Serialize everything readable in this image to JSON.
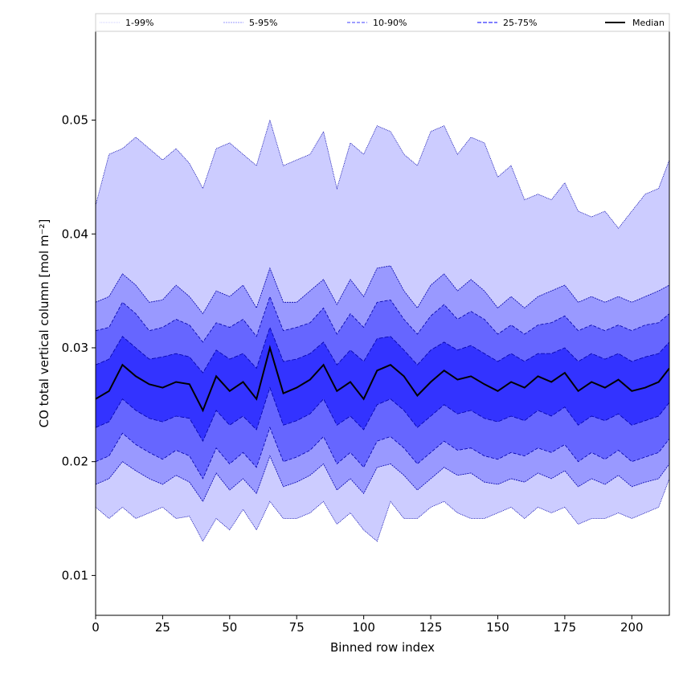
{
  "chart_data": {
    "type": "area",
    "xlabel": "Binned row index",
    "ylabel": "CO total vertical column [mol m⁻²]",
    "xlim": [
      0,
      214
    ],
    "ylim": [
      0.0065,
      0.0578
    ],
    "xticks": [
      0,
      25,
      50,
      75,
      100,
      125,
      150,
      175,
      200
    ],
    "xtick_labels": [
      "0",
      "25",
      "50",
      "75",
      "100",
      "125",
      "150",
      "175",
      "200"
    ],
    "yticks": [
      0.01,
      0.02,
      0.03,
      0.04,
      0.05
    ],
    "ytick_labels": [
      "0.01",
      "0.02",
      "0.03",
      "0.04",
      "0.05"
    ],
    "grid": false,
    "legend_position": "top (above plot, single row)",
    "colors": {
      "band_1_99": "#ccccff",
      "band_5_95": "#9999ff",
      "band_10_90": "#6666ff",
      "band_25_75": "#3333ff",
      "percentile_line": "#0000aa",
      "median_line": "#000000"
    },
    "legend": [
      {
        "label": "1-99%",
        "style": "dotted-thin"
      },
      {
        "label": "5-95%",
        "style": "dotted"
      },
      {
        "label": "10-90%",
        "style": "dashed"
      },
      {
        "label": "25-75%",
        "style": "dashed"
      },
      {
        "label": "Median",
        "style": "solid"
      }
    ],
    "x": [
      0,
      5,
      10,
      15,
      20,
      25,
      30,
      35,
      40,
      45,
      50,
      55,
      60,
      65,
      70,
      75,
      80,
      85,
      90,
      95,
      100,
      105,
      110,
      115,
      120,
      125,
      130,
      135,
      140,
      145,
      150,
      155,
      160,
      165,
      170,
      175,
      180,
      185,
      190,
      195,
      200,
      205,
      210,
      214
    ],
    "series": [
      {
        "name": "Median",
        "values": [
          0.0255,
          0.0262,
          0.0285,
          0.0275,
          0.0268,
          0.0265,
          0.027,
          0.0268,
          0.0245,
          0.0275,
          0.0262,
          0.027,
          0.0255,
          0.03,
          0.026,
          0.0265,
          0.0272,
          0.0285,
          0.0262,
          0.027,
          0.0255,
          0.028,
          0.0285,
          0.0275,
          0.0258,
          0.027,
          0.028,
          0.0272,
          0.0275,
          0.0268,
          0.0262,
          0.027,
          0.0265,
          0.0275,
          0.027,
          0.0278,
          0.0262,
          0.027,
          0.0265,
          0.0272,
          0.0262,
          0.0265,
          0.027,
          0.0282
        ]
      },
      {
        "name": "99%",
        "values": [
          0.0425,
          0.047,
          0.0475,
          0.0485,
          0.0475,
          0.0465,
          0.0475,
          0.0462,
          0.044,
          0.0475,
          0.048,
          0.047,
          0.046,
          0.05,
          0.046,
          0.0465,
          0.047,
          0.049,
          0.044,
          0.048,
          0.047,
          0.0495,
          0.049,
          0.047,
          0.046,
          0.049,
          0.0495,
          0.047,
          0.0485,
          0.048,
          0.045,
          0.046,
          0.043,
          0.0435,
          0.043,
          0.0445,
          0.042,
          0.0415,
          0.042,
          0.0405,
          0.042,
          0.0435,
          0.044,
          0.0465
        ]
      },
      {
        "name": "95%",
        "values": [
          0.034,
          0.0345,
          0.0365,
          0.0355,
          0.034,
          0.0342,
          0.0355,
          0.0345,
          0.033,
          0.035,
          0.0345,
          0.0355,
          0.0335,
          0.037,
          0.034,
          0.034,
          0.035,
          0.036,
          0.0338,
          0.036,
          0.0345,
          0.037,
          0.0372,
          0.035,
          0.0335,
          0.0355,
          0.0365,
          0.035,
          0.036,
          0.035,
          0.0335,
          0.0345,
          0.0335,
          0.0345,
          0.035,
          0.0355,
          0.034,
          0.0345,
          0.034,
          0.0345,
          0.034,
          0.0345,
          0.035,
          0.0355
        ]
      },
      {
        "name": "90%",
        "values": [
          0.0315,
          0.0318,
          0.034,
          0.033,
          0.0315,
          0.0318,
          0.0325,
          0.032,
          0.0305,
          0.0322,
          0.0318,
          0.0325,
          0.031,
          0.0345,
          0.0315,
          0.0318,
          0.0322,
          0.0335,
          0.0312,
          0.033,
          0.0318,
          0.034,
          0.0342,
          0.0325,
          0.0312,
          0.0328,
          0.0338,
          0.0325,
          0.0332,
          0.0325,
          0.0312,
          0.032,
          0.0312,
          0.032,
          0.0322,
          0.0328,
          0.0315,
          0.032,
          0.0315,
          0.032,
          0.0315,
          0.032,
          0.0322,
          0.033
        ]
      },
      {
        "name": "75%",
        "values": [
          0.0285,
          0.029,
          0.031,
          0.03,
          0.029,
          0.0292,
          0.0295,
          0.0292,
          0.0278,
          0.0298,
          0.029,
          0.0295,
          0.0282,
          0.0318,
          0.0288,
          0.029,
          0.0295,
          0.0305,
          0.0285,
          0.0298,
          0.0288,
          0.0308,
          0.031,
          0.0298,
          0.0285,
          0.0298,
          0.0305,
          0.0298,
          0.0302,
          0.0295,
          0.0288,
          0.0295,
          0.0288,
          0.0295,
          0.0295,
          0.03,
          0.0288,
          0.0295,
          0.029,
          0.0295,
          0.0288,
          0.0292,
          0.0295,
          0.0305
        ]
      },
      {
        "name": "25%",
        "values": [
          0.023,
          0.0235,
          0.0255,
          0.0245,
          0.0238,
          0.0235,
          0.024,
          0.0238,
          0.0218,
          0.0245,
          0.0232,
          0.024,
          0.0228,
          0.0265,
          0.0232,
          0.0236,
          0.0242,
          0.0255,
          0.0232,
          0.024,
          0.0228,
          0.025,
          0.0255,
          0.0245,
          0.023,
          0.024,
          0.025,
          0.0242,
          0.0245,
          0.0238,
          0.0235,
          0.024,
          0.0236,
          0.0245,
          0.024,
          0.0248,
          0.0232,
          0.024,
          0.0236,
          0.0242,
          0.0232,
          0.0236,
          0.024,
          0.0252
        ]
      },
      {
        "name": "10%",
        "values": [
          0.02,
          0.0205,
          0.0225,
          0.0215,
          0.0208,
          0.0202,
          0.021,
          0.0205,
          0.0185,
          0.0212,
          0.0198,
          0.0208,
          0.0195,
          0.023,
          0.02,
          0.0204,
          0.021,
          0.0222,
          0.0198,
          0.0208,
          0.0195,
          0.0218,
          0.0222,
          0.0212,
          0.0198,
          0.0208,
          0.0218,
          0.021,
          0.0212,
          0.0205,
          0.0202,
          0.0208,
          0.0205,
          0.0212,
          0.0208,
          0.0215,
          0.02,
          0.0208,
          0.0202,
          0.021,
          0.02,
          0.0204,
          0.0208,
          0.022
        ]
      },
      {
        "name": "5%",
        "values": [
          0.018,
          0.0185,
          0.02,
          0.0192,
          0.0185,
          0.018,
          0.0188,
          0.0182,
          0.0165,
          0.019,
          0.0175,
          0.0185,
          0.0172,
          0.0205,
          0.0178,
          0.0182,
          0.0188,
          0.0198,
          0.0175,
          0.0185,
          0.0172,
          0.0195,
          0.0198,
          0.0188,
          0.0175,
          0.0185,
          0.0195,
          0.0188,
          0.019,
          0.0182,
          0.018,
          0.0185,
          0.0182,
          0.019,
          0.0185,
          0.0192,
          0.0178,
          0.0185,
          0.018,
          0.0188,
          0.0178,
          0.0182,
          0.0185,
          0.0198
        ]
      },
      {
        "name": "1%",
        "values": [
          0.016,
          0.015,
          0.016,
          0.015,
          0.0155,
          0.016,
          0.015,
          0.0152,
          0.013,
          0.015,
          0.014,
          0.0158,
          0.014,
          0.0165,
          0.015,
          0.015,
          0.0155,
          0.0165,
          0.0145,
          0.0155,
          0.014,
          0.013,
          0.0165,
          0.015,
          0.015,
          0.016,
          0.0165,
          0.0155,
          0.015,
          0.015,
          0.0155,
          0.016,
          0.015,
          0.016,
          0.0155,
          0.016,
          0.0145,
          0.015,
          0.015,
          0.0155,
          0.015,
          0.0155,
          0.016,
          0.0185
        ]
      }
    ]
  }
}
